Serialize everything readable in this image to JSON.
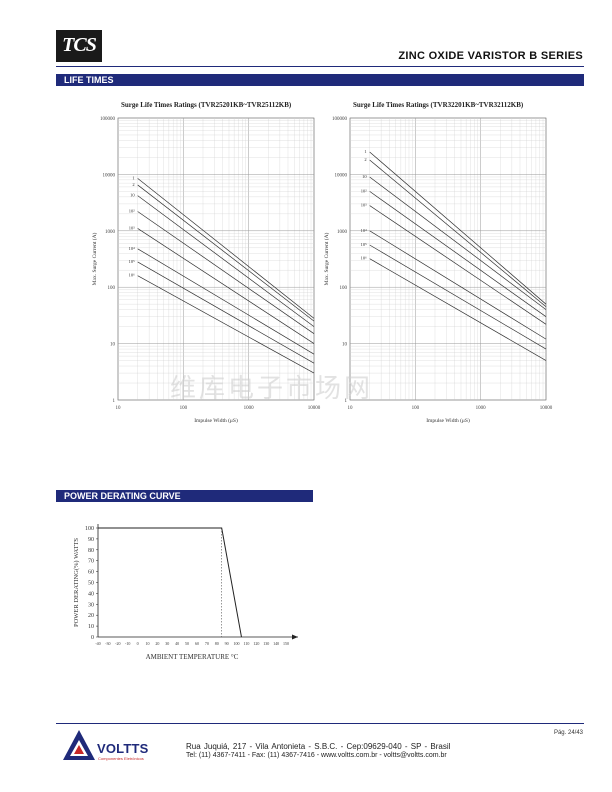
{
  "header": {
    "logo_text": "TCS",
    "series_title": "ZINC OXIDE VARISTOR B SERIES"
  },
  "sections": {
    "life_times": "LIFE TIMES",
    "power_derating": "POWER DERATING CURVE"
  },
  "watermark": "维库电子市场网",
  "chart_data": [
    {
      "type": "line",
      "title": "Surge Life Times Ratings (TVR25201KB~TVR25112KB)",
      "xlabel": "Impulse Width (μS)",
      "ylabel": "Max. Surge Current (A)",
      "x_scale": "log",
      "y_scale": "log",
      "xlim": [
        10,
        10000
      ],
      "ylim": [
        1,
        100000
      ],
      "x_ticks": [
        "10",
        "100",
        "1000",
        "10000"
      ],
      "y_ticks": [
        "1",
        "10",
        "100",
        "1000",
        "10000",
        "100000"
      ],
      "series": [
        {
          "name": "1",
          "x": [
            20,
            10000
          ],
          "y": [
            8500,
            28
          ]
        },
        {
          "name": "2",
          "x": [
            20,
            10000
          ],
          "y": [
            6500,
            25
          ]
        },
        {
          "name": "10",
          "x": [
            20,
            10000
          ],
          "y": [
            4200,
            20
          ]
        },
        {
          "name": "10²",
          "x": [
            20,
            10000
          ],
          "y": [
            2200,
            15
          ]
        },
        {
          "name": "10³",
          "x": [
            20,
            10000
          ],
          "y": [
            1100,
            10
          ]
        },
        {
          "name": "10⁴",
          "x": [
            20,
            10000
          ],
          "y": [
            480,
            6.5
          ]
        },
        {
          "name": "10⁵",
          "x": [
            20,
            10000
          ],
          "y": [
            280,
            4.5
          ]
        },
        {
          "name": "10⁶",
          "x": [
            20,
            10000
          ],
          "y": [
            160,
            3
          ]
        }
      ]
    },
    {
      "type": "line",
      "title": "Surge Life Times Ratings (TVR32201KB~TVR32112KB)",
      "xlabel": "Impulse Width (μS)",
      "ylabel": "Max. Surge Current (A)",
      "x_scale": "log",
      "y_scale": "log",
      "xlim": [
        10,
        10000
      ],
      "ylim": [
        1,
        100000
      ],
      "x_ticks": [
        "10",
        "100",
        "1000",
        "10000"
      ],
      "y_ticks": [
        "1",
        "10",
        "100",
        "1000",
        "10000",
        "100000"
      ],
      "series": [
        {
          "name": "1",
          "x": [
            20,
            10000
          ],
          "y": [
            25000,
            50
          ]
        },
        {
          "name": "2",
          "x": [
            20,
            10000
          ],
          "y": [
            18000,
            45
          ]
        },
        {
          "name": "10",
          "x": [
            20,
            10000
          ],
          "y": [
            9000,
            40
          ]
        },
        {
          "name": "10²",
          "x": [
            20,
            10000
          ],
          "y": [
            5000,
            30
          ]
        },
        {
          "name": "10³",
          "x": [
            20,
            10000
          ],
          "y": [
            2800,
            22
          ]
        },
        {
          "name": "10⁴",
          "x": [
            20,
            10000
          ],
          "y": [
            1000,
            12
          ]
        },
        {
          "name": "10⁵",
          "x": [
            20,
            10000
          ],
          "y": [
            560,
            8
          ]
        },
        {
          "name": "10⁶",
          "x": [
            20,
            10000
          ],
          "y": [
            320,
            5
          ]
        }
      ]
    },
    {
      "type": "line",
      "title": "",
      "xlabel": "AMBIENT TEMPERATURE °C",
      "ylabel": "POWER DERATING(%) WATTS",
      "xlim": [
        -40,
        150
      ],
      "ylim": [
        0,
        100
      ],
      "x_ticks": [
        -40,
        -30,
        -20,
        -10,
        0,
        10,
        20,
        30,
        40,
        50,
        60,
        70,
        80,
        90,
        100,
        110,
        120,
        130,
        140,
        150
      ],
      "y_ticks": [
        0,
        10,
        20,
        30,
        40,
        50,
        60,
        70,
        80,
        90,
        100
      ],
      "grid": false,
      "series": [
        {
          "x": [
            -40,
            85,
            105
          ],
          "y": [
            100,
            100,
            0
          ]
        }
      ],
      "annotations": [
        {
          "type": "dashed-vertical",
          "x": 85
        }
      ]
    }
  ],
  "footer": {
    "page": "Pág. 24/43",
    "company": "VOLTTS",
    "company_sub": "Componentes Eletrônicos",
    "address": "Rua Juquiá, 217 - Vila Antonieta - S.B.C. - Cep:09629-040 - SP - Brasil",
    "contacts": "Tel: (11) 4367-7411 - Fax: (11) 4367-7416 - www.voltts.com.br - voltts@voltts.com.br"
  }
}
